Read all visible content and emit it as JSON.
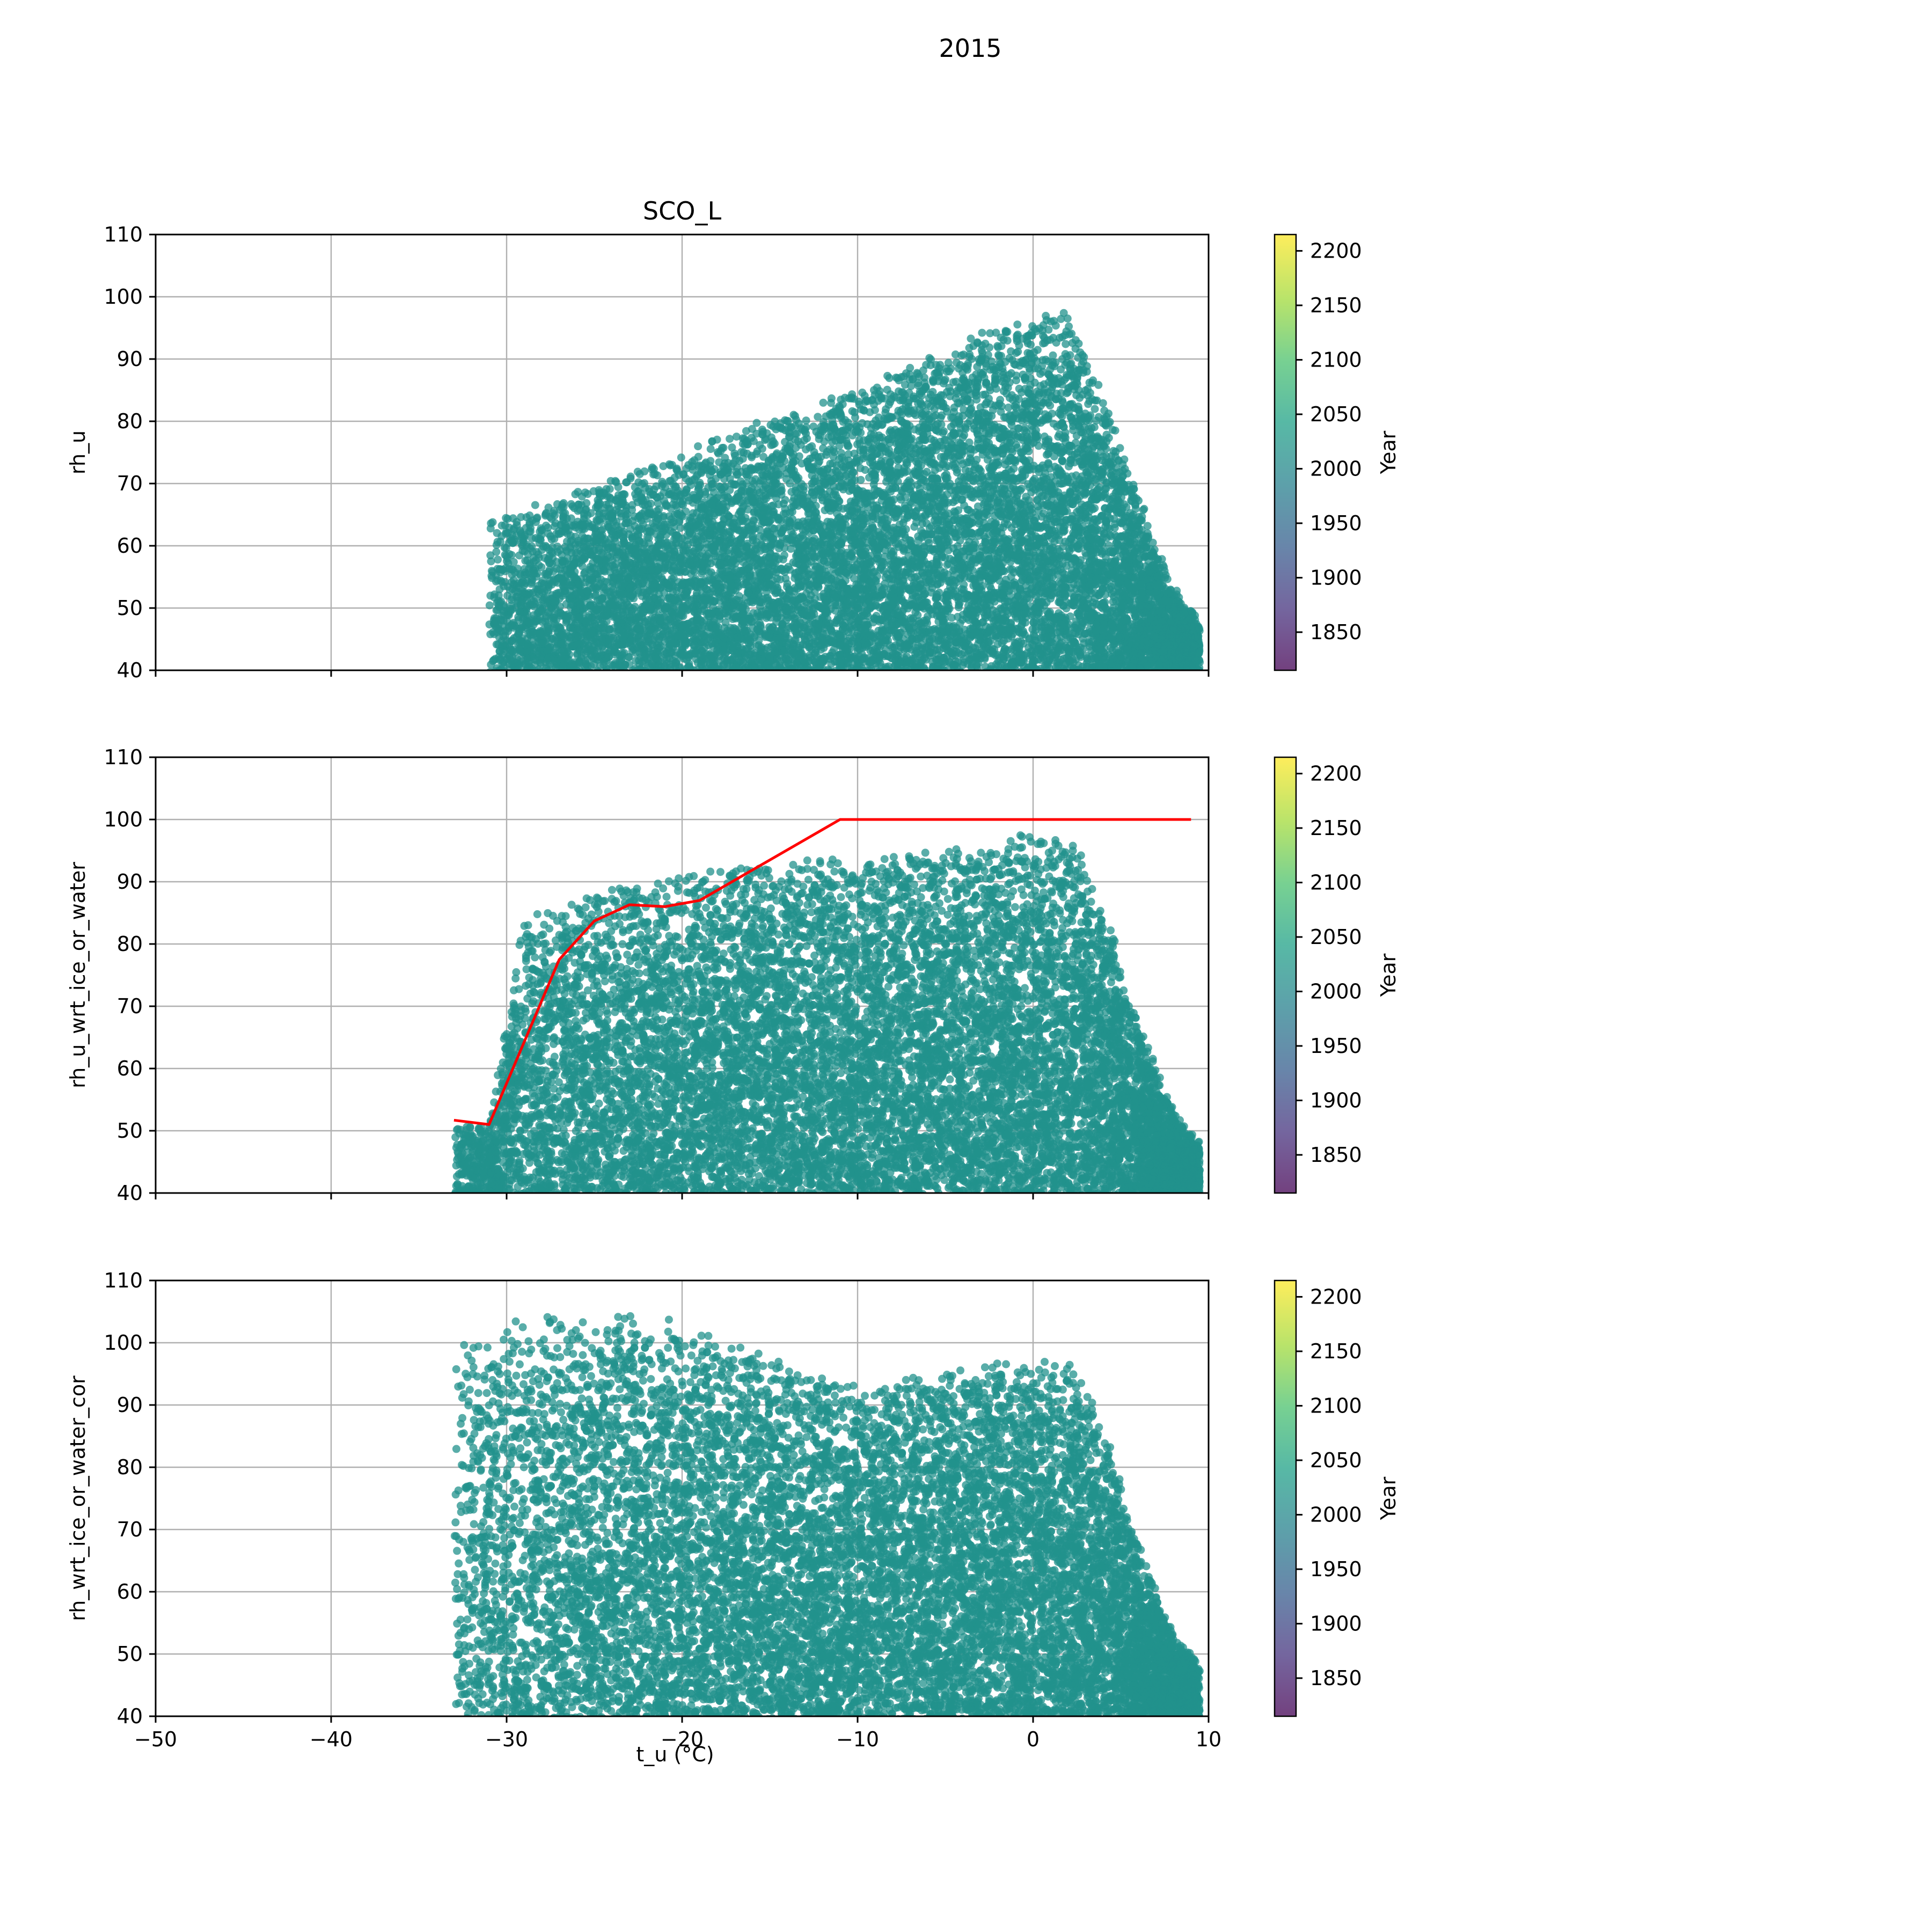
{
  "figure": {
    "suptitle": "2015",
    "xlabel": "t_u (°C)"
  },
  "chart_data": [
    {
      "type": "scatter",
      "title": "SCO_L",
      "ylabel": "rh_u",
      "xlim": [
        -50,
        10
      ],
      "ylim": [
        40,
        110
      ],
      "x_ticks": [
        "−50",
        "−40",
        "−30",
        "−20",
        "−10",
        "0",
        "10"
      ],
      "y_ticks": [
        "40",
        "50",
        "60",
        "70",
        "80",
        "90",
        "100",
        "110"
      ],
      "x_tick_labels_visible": false,
      "grid": true,
      "point_color": "#21918c",
      "point_opacity": 0.75,
      "point_cloud": {
        "x_range": [
          -31,
          9.5
        ],
        "upper_envelope": [
          [
            -30,
            65
          ],
          [
            -25,
            69
          ],
          [
            -20,
            75
          ],
          [
            -15,
            80
          ],
          [
            -10,
            85
          ],
          [
            -5,
            91
          ],
          [
            -1,
            97
          ],
          [
            2,
            97
          ],
          [
            3,
            92
          ],
          [
            4.5,
            80
          ],
          [
            5.5,
            72
          ],
          [
            7,
            60
          ],
          [
            8,
            53
          ],
          [
            9.5,
            48
          ]
        ],
        "lower_bound": 40,
        "approx_point_count": 12000
      },
      "overlay_line": null,
      "colorbar": {
        "label": "Year",
        "range": [
          1815,
          2215
        ],
        "ticks": [
          "1850",
          "1900",
          "1950",
          "2000",
          "2050",
          "2100",
          "2150",
          "2200"
        ],
        "colormap": "viridis"
      }
    },
    {
      "type": "scatter",
      "title": "",
      "ylabel": "rh_u_wrt_ice_or_water",
      "xlim": [
        -50,
        10
      ],
      "ylim": [
        40,
        110
      ],
      "x_ticks": [
        "−50",
        "−40",
        "−30",
        "−20",
        "−10",
        "0",
        "10"
      ],
      "y_ticks": [
        "40",
        "50",
        "60",
        "70",
        "80",
        "90",
        "100",
        "110"
      ],
      "x_tick_labels_visible": false,
      "grid": true,
      "point_color": "#21918c",
      "point_opacity": 0.75,
      "point_cloud": {
        "x_range": [
          -33,
          9.5
        ],
        "upper_envelope": [
          [
            -31,
            51
          ],
          [
            -29,
            85
          ],
          [
            -25,
            88
          ],
          [
            -20,
            91
          ],
          [
            -15,
            93
          ],
          [
            -10,
            94
          ],
          [
            -5,
            95
          ],
          [
            -1,
            97
          ],
          [
            2,
            97
          ],
          [
            3,
            93
          ],
          [
            4.5,
            82
          ],
          [
            5.5,
            72
          ],
          [
            7,
            60
          ],
          [
            8,
            53
          ],
          [
            9.5,
            48
          ]
        ],
        "lower_bound": 40,
        "approx_point_count": 12000
      },
      "overlay_line": {
        "color": "#ff0000",
        "x": [
          -33,
          -31,
          -27,
          -25,
          -23,
          -21,
          -19,
          -15,
          -11,
          9
        ],
        "y": [
          51.7,
          51,
          77.5,
          83.7,
          86.3,
          86,
          87,
          93.5,
          100,
          100
        ]
      },
      "colorbar": {
        "label": "Year",
        "range": [
          1815,
          2215
        ],
        "ticks": [
          "1850",
          "1900",
          "1950",
          "2000",
          "2050",
          "2100",
          "2150",
          "2200"
        ],
        "colormap": "viridis"
      }
    },
    {
      "type": "scatter",
      "title": "",
      "ylabel": "rh_wrt_ice_or_water_cor",
      "xlim": [
        -50,
        10
      ],
      "ylim": [
        40,
        110
      ],
      "x_ticks": [
        "−50",
        "−40",
        "−30",
        "−20",
        "−10",
        "0",
        "10"
      ],
      "y_ticks": [
        "40",
        "50",
        "60",
        "70",
        "80",
        "90",
        "100",
        "110"
      ],
      "x_tick_labels_visible": true,
      "grid": true,
      "point_color": "#21918c",
      "point_opacity": 0.75,
      "point_cloud": {
        "x_range": [
          -33,
          9.5
        ],
        "upper_envelope": [
          [
            -33,
            100
          ],
          [
            -28,
            104
          ],
          [
            -24,
            104
          ],
          [
            -20,
            103
          ],
          [
            -16,
            99
          ],
          [
            -12,
            95
          ],
          [
            -10,
            93
          ],
          [
            -5,
            95
          ],
          [
            -1,
            97
          ],
          [
            2,
            97
          ],
          [
            3,
            93
          ],
          [
            4.5,
            82
          ],
          [
            5.5,
            72
          ],
          [
            7,
            60
          ],
          [
            8,
            53
          ],
          [
            9.5,
            48
          ]
        ],
        "lower_bound": 40,
        "approx_point_count": 12000
      },
      "overlay_line": null,
      "colorbar": {
        "label": "Year",
        "range": [
          1815,
          2215
        ],
        "ticks": [
          "1850",
          "1900",
          "1950",
          "2000",
          "2050",
          "2100",
          "2150",
          "2200"
        ],
        "colormap": "viridis"
      }
    }
  ]
}
